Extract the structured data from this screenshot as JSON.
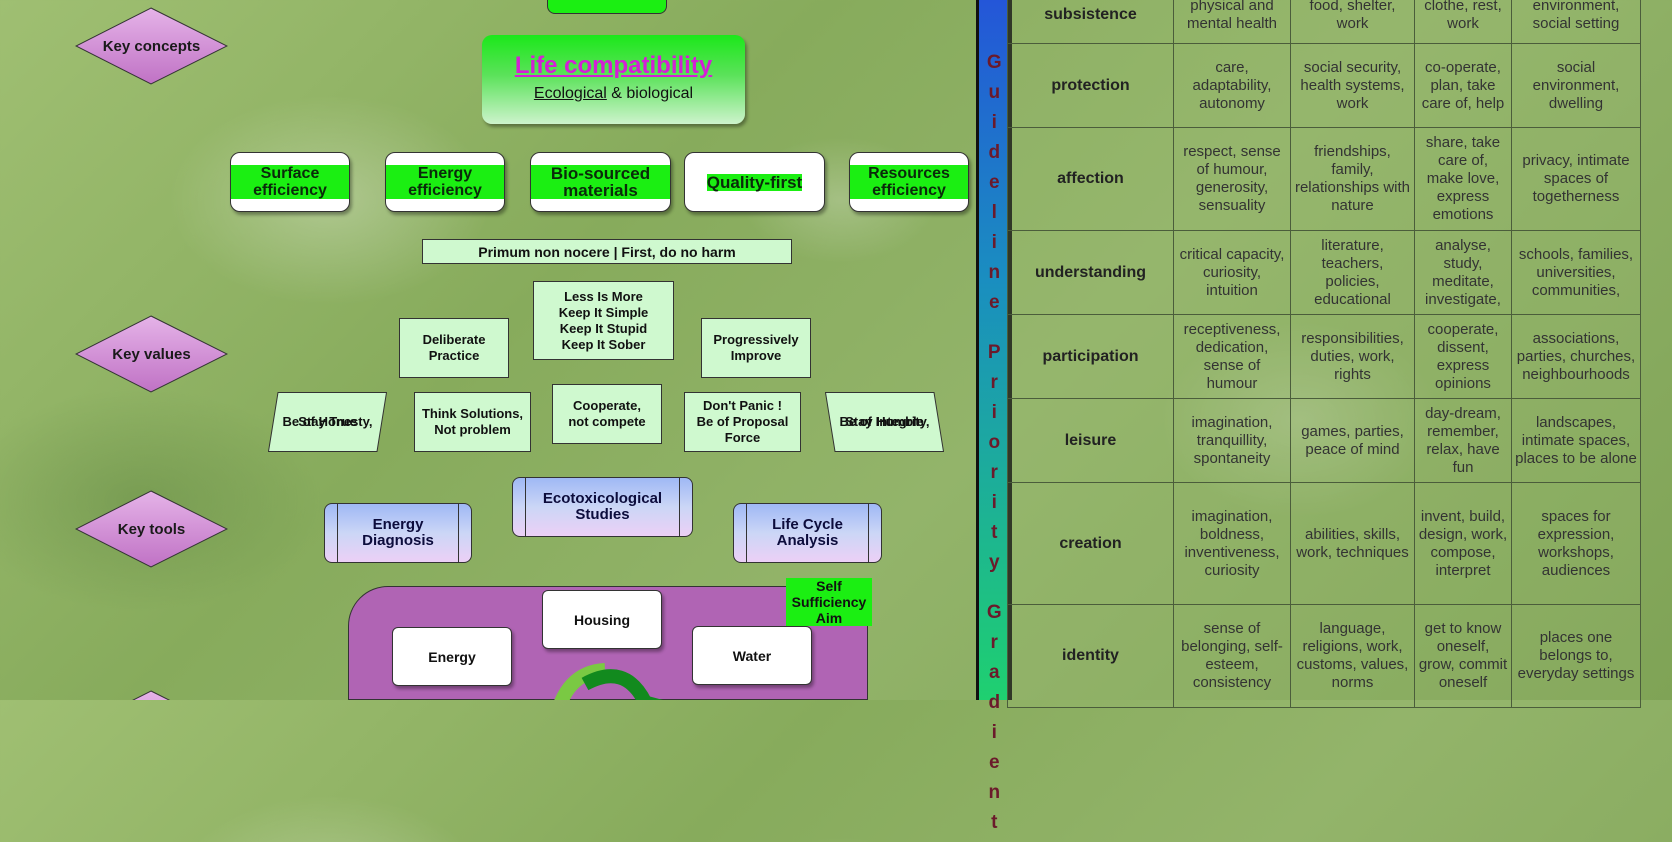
{
  "left": {
    "concepts": [
      "Key concepts",
      "Key values",
      "Key tools"
    ],
    "life": {
      "title": "Life compatibility",
      "sub_underlined": "Ecological",
      "sub_rest": " & biological"
    },
    "principles": [
      "Surface efficiency",
      "Energy efficiency",
      "Bio-sourced materials",
      "Quality-first",
      "Resources efficiency"
    ],
    "primum": "Primum non nocere | First, do no harm",
    "values_top": {
      "center": [
        "Less Is More",
        "Keep It Simple",
        "Keep It Stupid",
        "Keep It Sober"
      ],
      "left": [
        "Deliberate",
        "Practice"
      ],
      "right": [
        "Progressively",
        "Improve"
      ]
    },
    "values_bottom": {
      "honesty": [
        "Be of Honesty,",
        "Stay True"
      ],
      "solutions": [
        "Think Solutions,",
        "Not problem"
      ],
      "cooperate": [
        "Cooperate,",
        "not compete"
      ],
      "panic": [
        "Don't Panic !",
        "Be of Proposal",
        "Force"
      ],
      "integrity": [
        "Be of Integrity,",
        "Stay Humble"
      ]
    },
    "tools": [
      [
        "Energy",
        "Diagnosis"
      ],
      [
        "Ecotoxicological",
        "Studies"
      ],
      [
        "Life Cycle",
        "Analysis"
      ]
    ],
    "needs": [
      "Housing",
      "Energy",
      "Water"
    ],
    "self_aim": [
      "Self",
      "Sufficiency",
      "Aim"
    ]
  },
  "gradient_label": [
    "Guideline",
    "Priority",
    "Gradient"
  ],
  "colors": {
    "accent_green": "#1bef12",
    "title_magenta": "#d41fd6",
    "needs_purple": "#b064b4",
    "diamond_pink": "#d38fd6"
  },
  "matrix": {
    "rows": [
      {
        "need": "subsistence",
        "cells": [
          "physical and mental health",
          "food, shelter, work",
          "clothe, rest, work",
          "environment, social setting"
        ]
      },
      {
        "need": "protection",
        "cells": [
          "care, adaptability, autonomy",
          "social security, health systems, work",
          "co-operate, plan, take care of, help",
          "social environment, dwelling"
        ]
      },
      {
        "need": "affection",
        "cells": [
          "respect, sense of humour, generosity, sensuality",
          "friendships, family, relationships with nature",
          "share, take care of, make love, express emotions",
          "privacy, intimate spaces of togetherness"
        ]
      },
      {
        "need": "understanding",
        "cells": [
          "critical capacity, curiosity, intuition",
          "literature, teachers, policies, educational",
          "analyse, study, meditate, investigate,",
          "schools, families, universities, communities,"
        ]
      },
      {
        "need": "participation",
        "cells": [
          "receptiveness, dedication, sense of humour",
          "responsibilities, duties, work, rights",
          "cooperate, dissent, express opinions",
          "associations, parties, churches, neighbourhoods"
        ]
      },
      {
        "need": "leisure",
        "cells": [
          "imagination, tranquillity, spontaneity",
          "games, parties, peace of mind",
          "day-dream, remember, relax, have fun",
          "landscapes, intimate spaces, places to be alone"
        ]
      },
      {
        "need": "creation",
        "cells": [
          "imagination, boldness, inventiveness, curiosity",
          "abilities, skills, work, techniques",
          "invent, build, design, work, compose, interpret",
          "spaces for expression, workshops, audiences"
        ]
      },
      {
        "need": "identity",
        "cells": [
          "sense of belonging, self-esteem, consistency",
          "language, religions, work, customs, values, norms",
          "get to know oneself, grow, commit oneself",
          "places one belongs to, everyday settings"
        ]
      }
    ]
  }
}
